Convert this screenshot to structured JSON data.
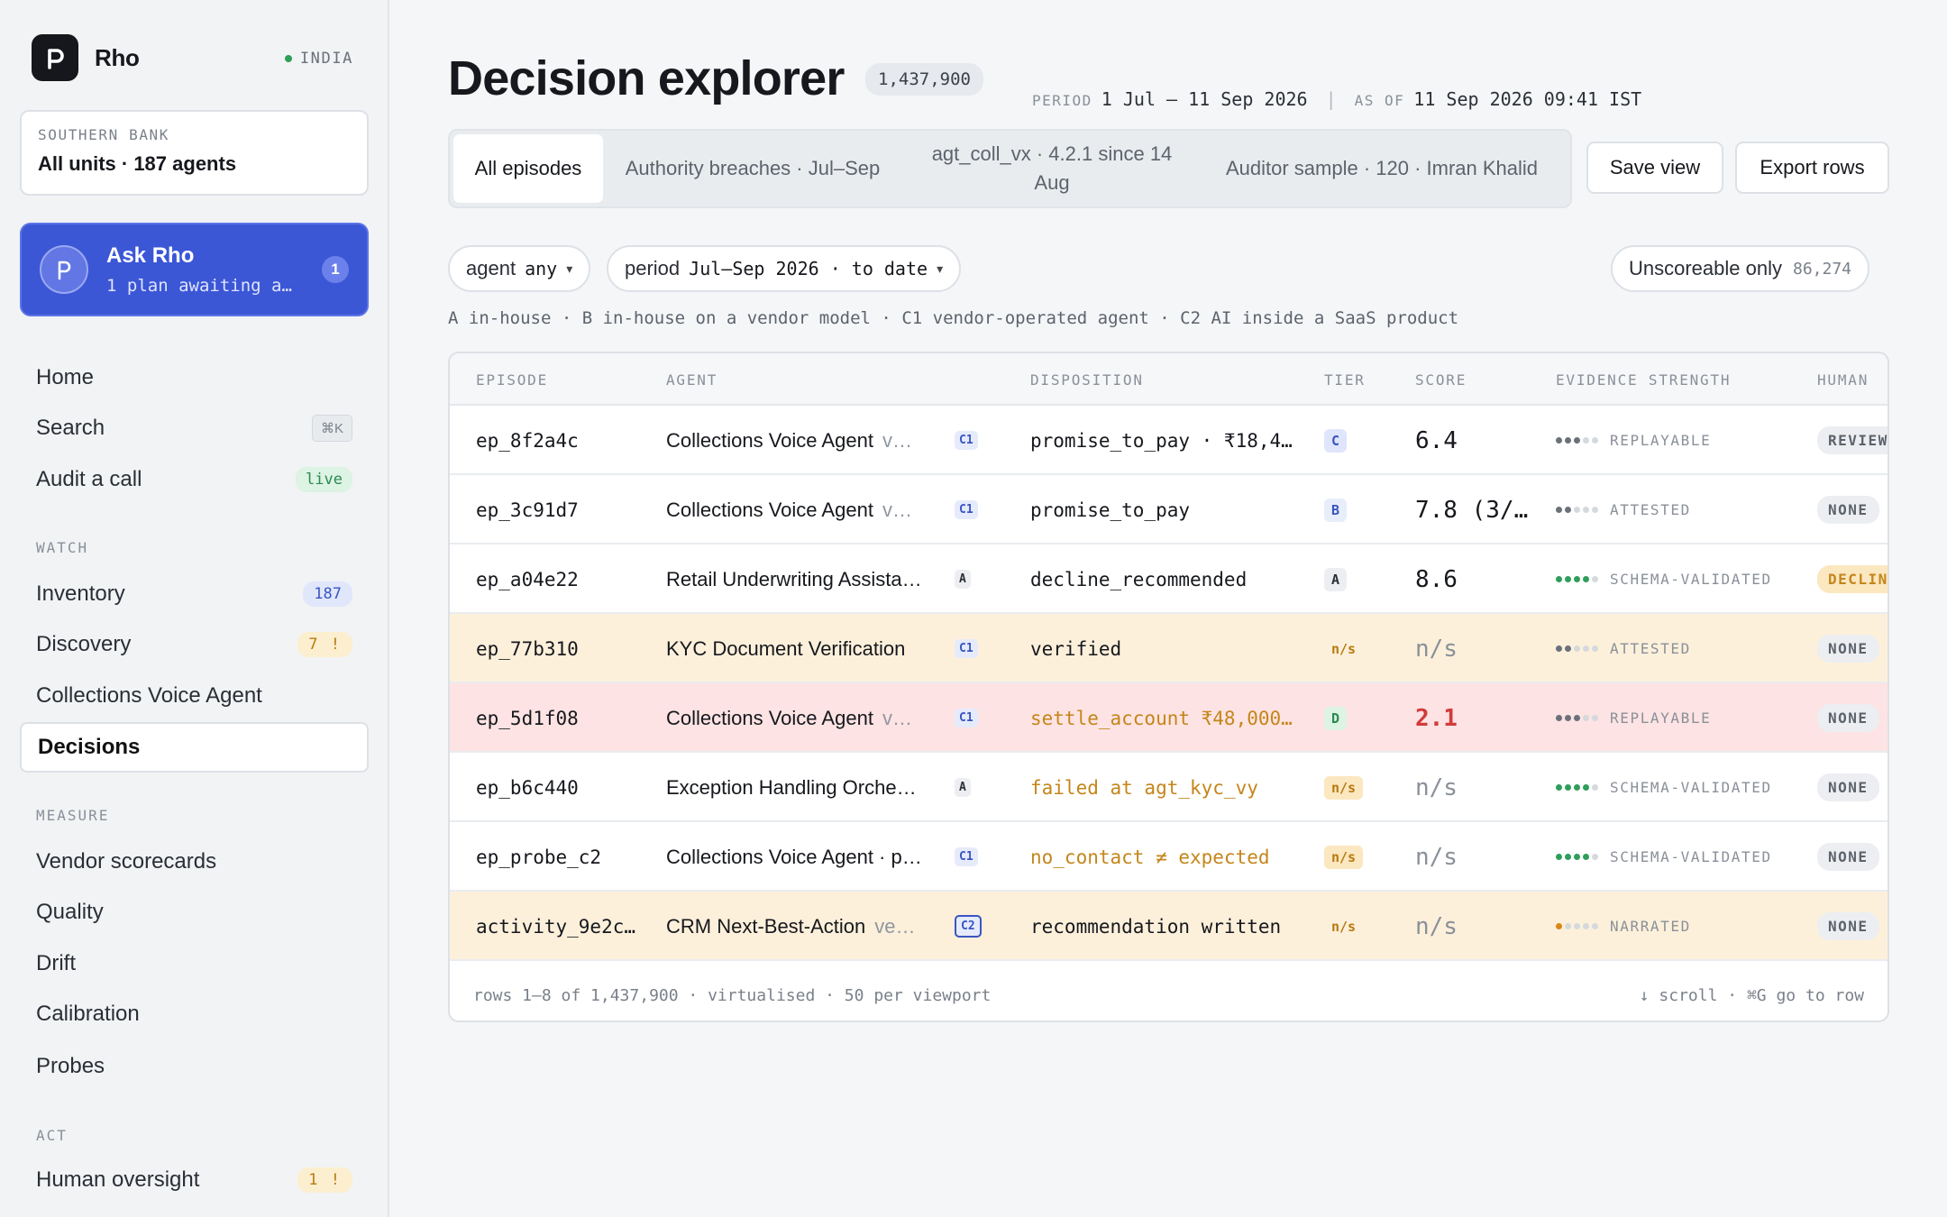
{
  "app": {
    "name": "Rho",
    "region": "INDIA"
  },
  "org": {
    "label": "SOUTHERN BANK",
    "value": "All units · 187 agents"
  },
  "ask": {
    "title": "Ask Rho",
    "subtitle": "1 plan awaiting a…",
    "badge": "1"
  },
  "nav": {
    "home": "Home",
    "search": "Search",
    "search_kbd": "⌘K",
    "audit": "Audit a call",
    "audit_badge": "live",
    "watch_label": "WATCH",
    "inventory": "Inventory",
    "inventory_badge": "187",
    "discovery": "Discovery",
    "discovery_badge": "7 !",
    "collections": "Collections Voice Agent",
    "decisions": "Decisions",
    "measure_label": "MEASURE",
    "vendor": "Vendor scorecards",
    "quality": "Quality",
    "drift": "Drift",
    "calibration": "Calibration",
    "probes": "Probes",
    "act_label": "ACT",
    "oversight": "Human oversight",
    "oversight_badge": "1 !"
  },
  "header": {
    "title": "Decision explorer",
    "count": "1,437,900",
    "period_label": "PERIOD",
    "period": "1 Jul – 11 Sep 2026",
    "asof_label": "AS OF",
    "asof": "11 Sep 2026 09:41 IST"
  },
  "tabs": [
    "All episodes",
    "Authority breaches · Jul–Sep",
    "agt_coll_vx · 4.2.1 since 14 Aug",
    "Auditor sample · 120 · Imran Khalid"
  ],
  "actions": {
    "save": "Save view",
    "export": "Export rows"
  },
  "filters": {
    "agent_label": "agent",
    "agent_value": "any",
    "period_label": "period",
    "period_value": "Jul–Sep 2026 · to date",
    "unscoreable_label": "Unscoreable only",
    "unscoreable_count": "86,274"
  },
  "legend": "A in-house · B in-house on a vendor model · C1 vendor-operated agent · C2 AI inside a SaaS product",
  "table": {
    "headers": [
      "EPISODE",
      "AGENT",
      "DISPOSITION",
      "TIER",
      "SCORE",
      "EVIDENCE STRENGTH",
      "HUMAN"
    ],
    "rows": [
      {
        "episode": "ep_8f2a4c",
        "agent": "Collections Voice Agent",
        "ver": "v…",
        "type": "C1",
        "disposition": "promise_to_pay · ₹18,4…",
        "tier": "C",
        "score": "6.4",
        "evidence": "REPLAYABLE",
        "dots": 3,
        "human": "REVIEW"
      },
      {
        "episode": "ep_3c91d7",
        "agent": "Collections Voice Agent",
        "ver": "v…",
        "type": "C1",
        "disposition": "promise_to_pay",
        "tier": "B",
        "score": "7.8 (3/…",
        "evidence": "ATTESTED",
        "dots": 2,
        "human": "NONE"
      },
      {
        "episode": "ep_a04e22",
        "agent": "Retail Underwriting Assista…",
        "ver": "",
        "type": "A",
        "disposition": "decline_recommended",
        "tier": "A",
        "score": "8.6",
        "evidence": "SCHEMA-VALIDATED",
        "dots": 4,
        "human": "DECLINE"
      },
      {
        "episode": "ep_77b310",
        "agent": "KYC Document Verification",
        "ver": "",
        "type": "C1",
        "disposition": "verified",
        "tier": "n/s",
        "score": "n/s",
        "evidence": "ATTESTED",
        "dots": 2,
        "human": "NONE"
      },
      {
        "episode": "ep_5d1f08",
        "agent": "Collections Voice Agent",
        "ver": "v…",
        "type": "C1",
        "disposition": "settle_account ₹48,000…",
        "tier": "D",
        "score": "2.1",
        "evidence": "REPLAYABLE",
        "dots": 3,
        "human": "NONE"
      },
      {
        "episode": "ep_b6c440",
        "agent": "Exception Handling Orche…",
        "ver": "",
        "type": "A",
        "disposition": "failed at agt_kyc_vy",
        "tier": "n/s",
        "score": "n/s",
        "evidence": "SCHEMA-VALIDATED",
        "dots": 4,
        "human": "NONE"
      },
      {
        "episode": "ep_probe_c2",
        "agent": "Collections Voice Agent · p…",
        "ver": "",
        "type": "C1",
        "disposition": "no_contact ≠ expected",
        "tier": "n/s",
        "score": "n/s",
        "evidence": "SCHEMA-VALIDATED",
        "dots": 4,
        "human": "NONE"
      },
      {
        "episode": "activity_9e2c…",
        "agent": "CRM Next-Best-Action",
        "ver": "ve…",
        "type": "C2",
        "disposition": "recommendation written",
        "tier": "n/s",
        "score": "n/s",
        "evidence": "NARRATED",
        "dots": 1,
        "human": "NONE"
      }
    ],
    "footer_left": "rows 1–8 of 1,437,900 · virtualised · 50 per viewport",
    "footer_right": "↓ scroll · ⌘G go to row"
  }
}
